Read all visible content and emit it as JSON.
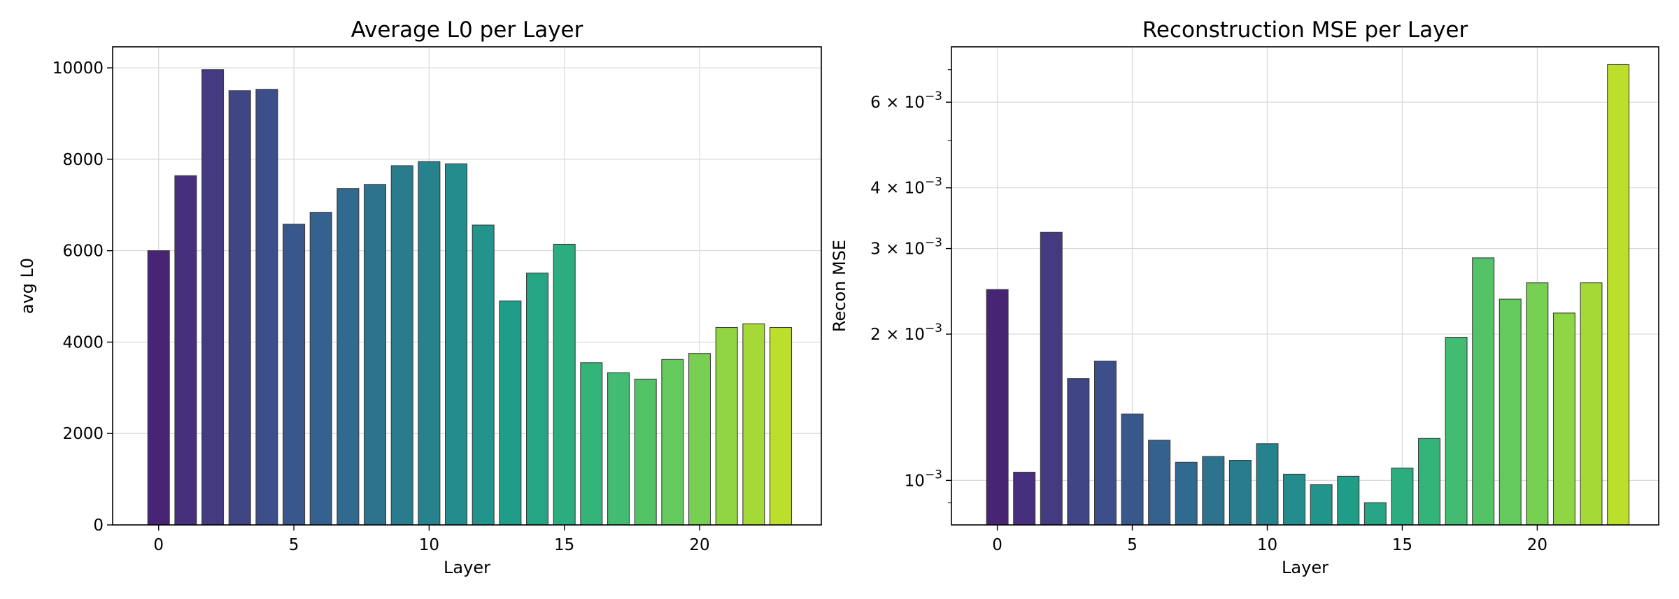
{
  "chart_data": [
    {
      "type": "bar",
      "title": "Average L0 per Layer",
      "xlabel": "Layer",
      "ylabel": "avg L0",
      "x": [
        0,
        1,
        2,
        3,
        4,
        5,
        6,
        7,
        8,
        9,
        10,
        11,
        12,
        13,
        14,
        15,
        16,
        17,
        18,
        19,
        20,
        21,
        22,
        23
      ],
      "values": [
        6000,
        7640,
        9960,
        9500,
        9530,
        6580,
        6840,
        7360,
        7450,
        7860,
        7950,
        7900,
        6560,
        4900,
        5510,
        6140,
        3550,
        3330,
        3190,
        3620,
        3750,
        4320,
        4400,
        4320
      ],
      "xticks": [
        0,
        5,
        10,
        15,
        20
      ],
      "xtick_labels": [
        "0",
        "5",
        "10",
        "15",
        "20"
      ],
      "yticks": [
        0,
        2000,
        4000,
        6000,
        8000,
        10000
      ],
      "ytick_labels": [
        "0",
        "2000",
        "4000",
        "6000",
        "8000",
        "10000"
      ],
      "xlim": [
        -1.7,
        24.5
      ],
      "ylim": [
        0,
        10460
      ],
      "yscale": "linear",
      "grid": true,
      "colormap": "viridis"
    },
    {
      "type": "bar",
      "title": "Reconstruction MSE per Layer",
      "xlabel": "Layer",
      "ylabel": "Recon MSE",
      "x": [
        0,
        1,
        2,
        3,
        4,
        5,
        6,
        7,
        8,
        9,
        10,
        11,
        12,
        13,
        14,
        15,
        16,
        17,
        18,
        19,
        20,
        21,
        22,
        23
      ],
      "values": [
        0.00247,
        0.00104,
        0.00324,
        0.00162,
        0.00176,
        0.00137,
        0.00121,
        0.00109,
        0.00112,
        0.0011,
        0.00119,
        0.00103,
        0.00098,
        0.00102,
        0.0009,
        0.00106,
        0.00122,
        0.00197,
        0.00287,
        0.00236,
        0.00255,
        0.00221,
        0.00255,
        0.00717
      ],
      "xticks": [
        0,
        5,
        10,
        15,
        20
      ],
      "xtick_labels": [
        "0",
        "5",
        "10",
        "15",
        "20"
      ],
      "yticks": [
        0.001,
        0.002,
        0.003,
        0.004,
        0.006
      ],
      "ytick_labels": [
        {
          "base": "10",
          "exp": "−3"
        },
        {
          "base": "2 × 10",
          "exp": "−3"
        },
        {
          "base": "3 × 10",
          "exp": "−3"
        },
        {
          "base": "4 × 10",
          "exp": "−3"
        },
        {
          "base": "6 × 10",
          "exp": "−3"
        }
      ],
      "minor_yticks": [
        0.0009,
        0.005,
        0.007
      ],
      "xlim": [
        -1.7,
        24.5
      ],
      "ylim": [
        0.00081,
        0.0078
      ],
      "yscale": "log",
      "grid": true,
      "colormap": "viridis"
    }
  ]
}
